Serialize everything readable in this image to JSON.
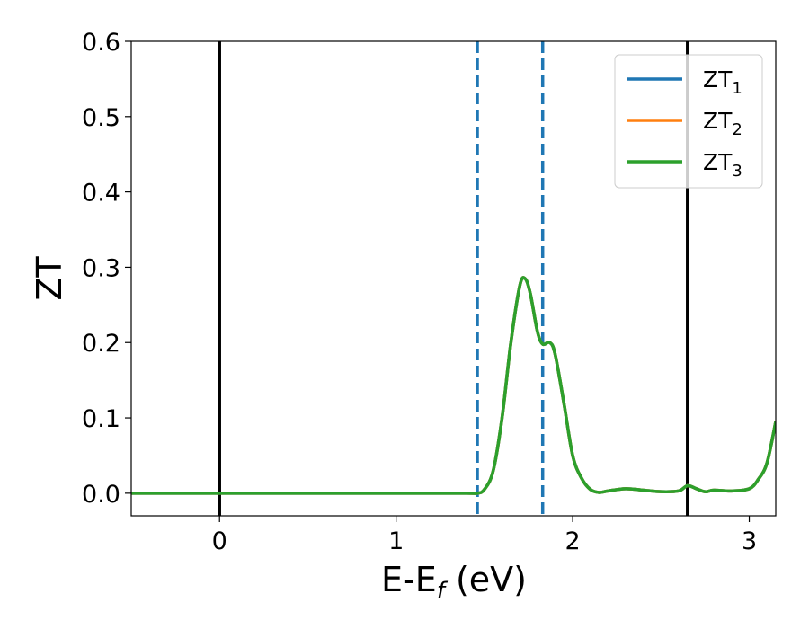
{
  "chart_data": {
    "type": "line",
    "title": "",
    "xlabel": "E-E",
    "xlabel_sub": "f",
    "xlabel_unit": " (eV)",
    "ylabel": "ZT",
    "xlim": [
      -0.5,
      3.15
    ],
    "ylim": [
      -0.03,
      0.6
    ],
    "grid": false,
    "legend_position": "top-right",
    "xticks": [
      0,
      1,
      2,
      3
    ],
    "xtick_labels": [
      "0",
      "1",
      "2",
      "3"
    ],
    "yticks": [
      0.0,
      0.1,
      0.2,
      0.3,
      0.4,
      0.5,
      0.6
    ],
    "ytick_labels": [
      "0.0",
      "0.1",
      "0.2",
      "0.3",
      "0.4",
      "0.5",
      "0.6"
    ],
    "vertical_lines": [
      {
        "x": 0.0,
        "style": "solid",
        "color": "#000000"
      },
      {
        "x": 2.65,
        "style": "solid",
        "color": "#000000"
      },
      {
        "x": 1.46,
        "style": "dashed",
        "color": "#1f77b4"
      },
      {
        "x": 1.83,
        "style": "dashed",
        "color": "#1f77b4"
      }
    ],
    "legend": [
      {
        "base": "ZT",
        "sub": "1",
        "color": "#1f77b4"
      },
      {
        "base": "ZT",
        "sub": "2",
        "color": "#ff7f0e"
      },
      {
        "base": "ZT",
        "sub": "3",
        "color": "#2ca02c"
      }
    ],
    "series": [
      {
        "label": "ZT1",
        "color": "#1f77b4"
      },
      {
        "label": "ZT2",
        "color": "#ff7f0e"
      },
      {
        "label": "ZT3",
        "color": "#2ca02c"
      }
    ],
    "x": [
      -0.5,
      0.0,
      0.5,
      1.0,
      1.4,
      1.46,
      1.5,
      1.55,
      1.6,
      1.65,
      1.7,
      1.73,
      1.76,
      1.8,
      1.83,
      1.87,
      1.9,
      1.95,
      2.0,
      2.05,
      2.1,
      2.15,
      2.2,
      2.3,
      2.4,
      2.5,
      2.6,
      2.65,
      2.7,
      2.75,
      2.8,
      2.9,
      3.0,
      3.05,
      3.1,
      3.15
    ],
    "y": [
      0.0,
      0.0,
      0.0,
      0.0,
      0.0,
      0.0,
      0.005,
      0.03,
      0.1,
      0.2,
      0.275,
      0.285,
      0.265,
      0.215,
      0.198,
      0.2,
      0.185,
      0.12,
      0.05,
      0.02,
      0.005,
      0.001,
      0.003,
      0.006,
      0.004,
      0.002,
      0.003,
      0.01,
      0.006,
      0.002,
      0.004,
      0.003,
      0.006,
      0.018,
      0.04,
      0.095
    ]
  }
}
